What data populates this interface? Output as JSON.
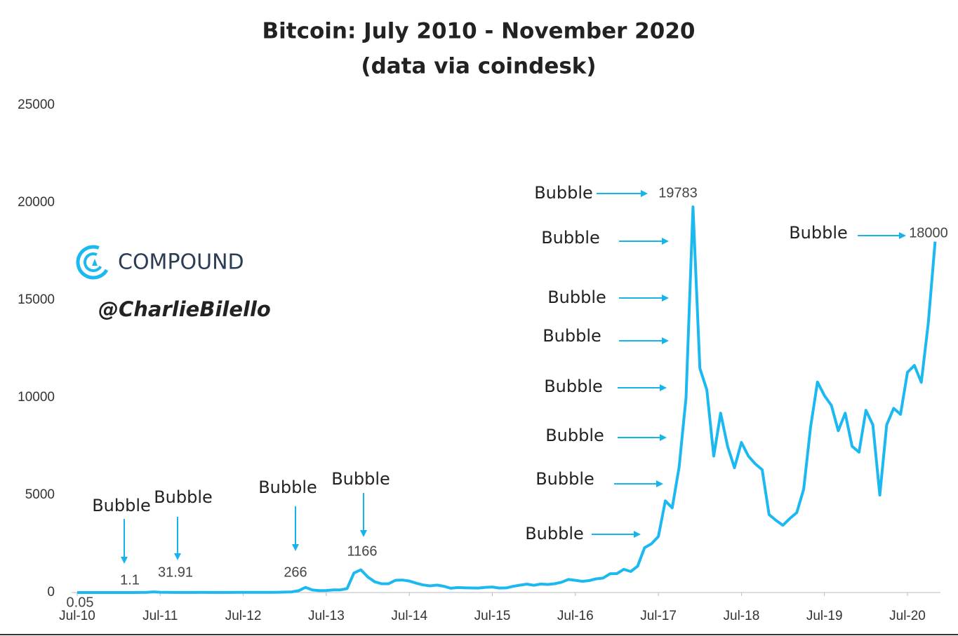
{
  "chart_data": {
    "type": "line",
    "title": "Bitcoin: July 2010 - November 2020",
    "subtitle": "(data via coindesk)",
    "watermark": {
      "logo": "COMPOUND",
      "handle": "@CharlieBilello"
    },
    "color": "#1cb9f1",
    "x": [
      "Jul-10",
      "Aug-10",
      "Sep-10",
      "Oct-10",
      "Nov-10",
      "Dec-10",
      "Jan-11",
      "Feb-11",
      "Mar-11",
      "Apr-11",
      "May-11",
      "Jun-11",
      "Jul-11",
      "Aug-11",
      "Sep-11",
      "Oct-11",
      "Nov-11",
      "Dec-11",
      "Jan-12",
      "Feb-12",
      "Mar-12",
      "Apr-12",
      "May-12",
      "Jun-12",
      "Jul-12",
      "Aug-12",
      "Sep-12",
      "Oct-12",
      "Nov-12",
      "Dec-12",
      "Jan-13",
      "Feb-13",
      "Mar-13",
      "Apr-13",
      "May-13",
      "Jun-13",
      "Jul-13",
      "Aug-13",
      "Sep-13",
      "Oct-13",
      "Nov-13",
      "Dec-13",
      "Jan-14",
      "Feb-14",
      "Mar-14",
      "Apr-14",
      "May-14",
      "Jun-14",
      "Jul-14",
      "Aug-14",
      "Sep-14",
      "Oct-14",
      "Nov-14",
      "Dec-14",
      "Jan-15",
      "Feb-15",
      "Mar-15",
      "Apr-15",
      "May-15",
      "Jun-15",
      "Jul-15",
      "Aug-15",
      "Sep-15",
      "Oct-15",
      "Nov-15",
      "Dec-15",
      "Jan-16",
      "Feb-16",
      "Mar-16",
      "Apr-16",
      "May-16",
      "Jun-16",
      "Jul-16",
      "Aug-16",
      "Sep-16",
      "Oct-16",
      "Nov-16",
      "Dec-16",
      "Jan-17",
      "Feb-17",
      "Mar-17",
      "Apr-17",
      "May-17",
      "Jun-17",
      "Jul-17",
      "Aug-17",
      "Sep-17",
      "Oct-17",
      "Nov-17",
      "Dec-17",
      "Jan-18",
      "Feb-18",
      "Mar-18",
      "Apr-18",
      "May-18",
      "Jun-18",
      "Jul-18",
      "Aug-18",
      "Sep-18",
      "Oct-18",
      "Nov-18",
      "Dec-18",
      "Jan-19",
      "Feb-19",
      "Mar-19",
      "Apr-19",
      "May-19",
      "Jun-19",
      "Jul-19",
      "Aug-19",
      "Sep-19",
      "Oct-19",
      "Nov-19",
      "Dec-19",
      "Jan-20",
      "Feb-20",
      "Mar-20",
      "Apr-20",
      "May-20",
      "Jun-20",
      "Jul-20",
      "Aug-20",
      "Sep-20",
      "Oct-20",
      "Nov-20"
    ],
    "values": [
      0.05,
      0.06,
      0.06,
      0.19,
      0.21,
      0.3,
      0.5,
      1.1,
      0.8,
      3.5,
      8.7,
      31.91,
      13,
      8,
      5,
      3.2,
      3,
      4.7,
      5.5,
      4.9,
      4.9,
      5,
      5.2,
      6.7,
      9.4,
      10,
      12.4,
      11.2,
      12.5,
      13.5,
      20,
      33,
      93,
      266,
      129,
      97,
      106,
      135,
      133,
      203,
      1000,
      1166,
      800,
      550,
      450,
      450,
      630,
      640,
      590,
      480,
      390,
      340,
      380,
      320,
      220,
      255,
      245,
      235,
      230,
      265,
      285,
      230,
      237,
      315,
      378,
      430,
      370,
      435,
      415,
      450,
      530,
      670,
      625,
      575,
      610,
      700,
      740,
      960,
      970,
      1190,
      1080,
      1350,
      2300,
      2500,
      2875,
      4700,
      4340,
      6450,
      10000,
      19783,
      11500,
      10400,
      7000,
      9200,
      7500,
      6400,
      7700,
      7000,
      6600,
      6300,
      4000,
      3700,
      3450,
      3800,
      4100,
      5300,
      8500,
      10800,
      10100,
      9600,
      8300,
      9200,
      7500,
      7200,
      9350,
      8600,
      5000,
      8600,
      9450,
      9140,
      11300,
      11650,
      10780,
      13800,
      18000
    ],
    "ylim": [
      0,
      25000
    ],
    "yticks": [
      0,
      5000,
      10000,
      15000,
      20000,
      25000
    ],
    "xticks": [
      "Jul-10",
      "Jul-11",
      "Jul-12",
      "Jul-13",
      "Jul-14",
      "Jul-15",
      "Jul-16",
      "Jul-17",
      "Jul-18",
      "Jul-19",
      "Jul-20"
    ],
    "grid": false,
    "annotations": [
      {
        "x": "Jul-10",
        "value": 0.05
      },
      {
        "text": "Bubble",
        "x": "Feb-11",
        "value": 1.1
      },
      {
        "text": "Bubble",
        "x": "Jun-11",
        "value": 31.91
      },
      {
        "text": "Bubble",
        "x": "Apr-13",
        "value": 266
      },
      {
        "text": "Bubble",
        "x": "Dec-13",
        "value": 1166
      },
      {
        "text": "Bubble",
        "x": "Dec-17",
        "value": 19783
      },
      {
        "text": "Bubble"
      },
      {
        "text": "Bubble"
      },
      {
        "text": "Bubble"
      },
      {
        "text": "Bubble"
      },
      {
        "text": "Bubble"
      },
      {
        "text": "Bubble"
      },
      {
        "text": "Bubble"
      },
      {
        "text": "Bubble",
        "x": "Nov-20",
        "value": 18000
      }
    ]
  }
}
